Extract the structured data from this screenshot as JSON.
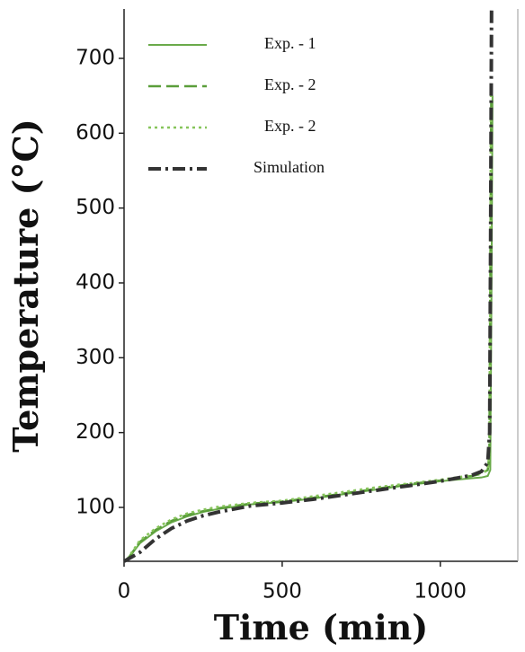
{
  "chart_data": {
    "type": "line",
    "xlabel": "Time (min)",
    "ylabel": "Temperature (°C)",
    "xlim": [
      0,
      1245
    ],
    "ylim": [
      28,
      766
    ],
    "xticks": [
      0,
      500,
      1000
    ],
    "yticks": [
      100,
      200,
      300,
      400,
      500,
      600,
      700
    ],
    "legend": "upper left",
    "series": [
      {
        "name": "Exp. - 1",
        "color": "#6aaa4a",
        "dash": "solid",
        "x": [
          10,
          50,
          100,
          150,
          200,
          250,
          300,
          400,
          500,
          600,
          700,
          800,
          900,
          1000,
          1050,
          1100,
          1130,
          1150,
          1158,
          1162,
          1165
        ],
        "values": [
          30,
          52,
          68,
          80,
          88,
          94,
          98,
          104,
          107,
          112,
          118,
          124,
          130,
          135,
          137,
          139,
          140,
          142,
          150,
          400,
          650
        ]
      },
      {
        "name": "Exp. - 2",
        "color": "#5a9e3a",
        "dash": "dashed",
        "x": [
          10,
          50,
          100,
          150,
          200,
          250,
          300,
          400,
          500,
          600,
          700,
          800,
          900,
          1000,
          1050,
          1100,
          1130,
          1150,
          1155,
          1158,
          1161
        ],
        "values": [
          30,
          54,
          70,
          82,
          90,
          95,
          99,
          105,
          108,
          113,
          119,
          125,
          131,
          136,
          139,
          142,
          145,
          150,
          170,
          400,
          645
        ]
      },
      {
        "name": "Exp. - 2",
        "color": "#86c45a",
        "dash": "dotted",
        "x": [
          10,
          50,
          100,
          150,
          200,
          250,
          300,
          400,
          500,
          600,
          700,
          800,
          900,
          1000,
          1050,
          1100,
          1130,
          1150,
          1155,
          1158,
          1160
        ],
        "values": [
          31,
          56,
          72,
          84,
          92,
          97,
          101,
          106,
          109,
          115,
          121,
          127,
          132,
          137,
          140,
          143,
          146,
          150,
          175,
          400,
          650
        ]
      },
      {
        "name": "Simulation",
        "color": "#333333",
        "dash": "dashdot",
        "x": [
          0,
          50,
          100,
          150,
          200,
          250,
          300,
          400,
          500,
          600,
          700,
          800,
          900,
          1000,
          1050,
          1100,
          1130,
          1150,
          1156,
          1159,
          1162
        ],
        "values": [
          28,
          40,
          58,
          72,
          82,
          89,
          94,
          102,
          106,
          111,
          117,
          123,
          129,
          135,
          139,
          143,
          148,
          160,
          200,
          450,
          766
        ]
      }
    ]
  }
}
